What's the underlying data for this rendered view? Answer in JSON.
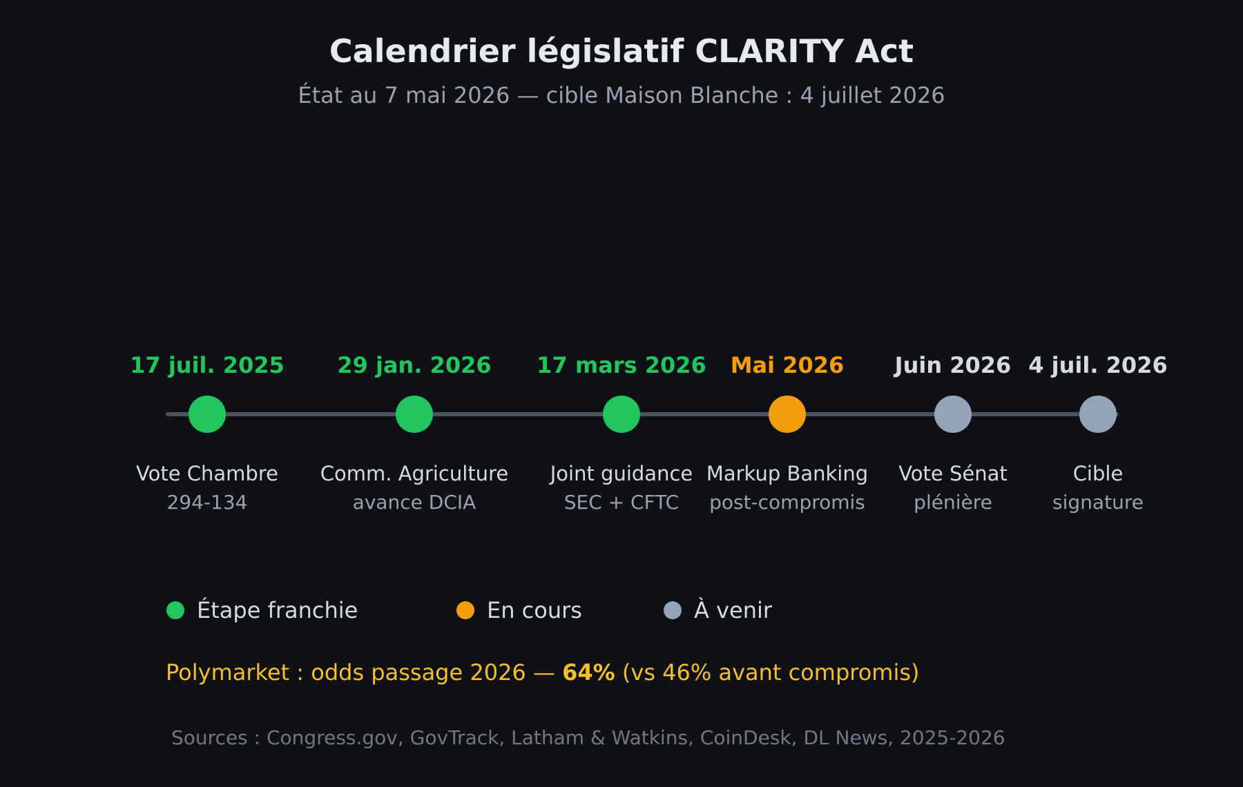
{
  "header": {
    "title": "Calendrier législatif CLARITY Act",
    "subtitle": "État au 7 mai 2026 — cible Maison Blanche : 4 juillet 2026"
  },
  "colors": {
    "done": "#22c55e",
    "in_progress": "#f59e0b",
    "upcoming": "#94a3b8",
    "upcoming_text": "#d6dae2",
    "line": "#4b5261"
  },
  "milestones": [
    {
      "date": "17 juil. 2025",
      "label": "Vote Chambre",
      "sublabel": "294-134",
      "status": "done"
    },
    {
      "date": "29 jan. 2026",
      "label": "Comm. Agriculture",
      "sublabel": "avance DCIA",
      "status": "done"
    },
    {
      "date": "17 mars 2026",
      "label": "Joint guidance",
      "sublabel": "SEC + CFTC",
      "status": "done"
    },
    {
      "date": "Mai 2026",
      "label": "Markup Banking",
      "sublabel": "post-compromis",
      "status": "in_progress"
    },
    {
      "date": "Juin 2026",
      "label": "Vote Sénat",
      "sublabel": "plénière",
      "status": "upcoming"
    },
    {
      "date": "4 juil. 2026",
      "label": "Cible",
      "sublabel": "signature",
      "status": "upcoming"
    }
  ],
  "legend": [
    {
      "label": "Étape franchie",
      "status": "done"
    },
    {
      "label": "En cours",
      "status": "in_progress"
    },
    {
      "label": "À venir",
      "status": "upcoming"
    }
  ],
  "polymarket": {
    "prefix": "Polymarket : odds passage 2026 — ",
    "value": "64%",
    "suffix": " (vs 46% avant compromis)"
  },
  "sources": "Sources : Congress.gov, GovTrack, Latham & Watkins, CoinDesk, DL News, 2025-2026"
}
